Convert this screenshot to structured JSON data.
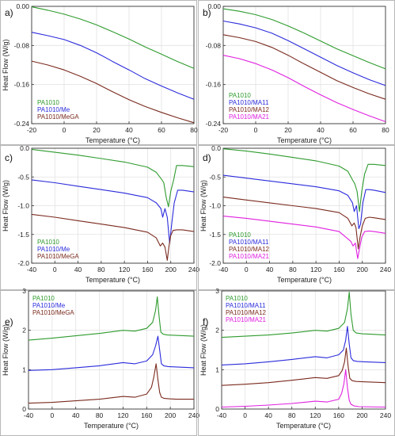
{
  "chart_data": [
    {
      "panel_label": "a)",
      "type": "line",
      "xlabel": "Temperature (°C)",
      "ylabel": "Heat Flow (W/g)",
      "xlim": [
        -20,
        80
      ],
      "ylim": [
        -0.24,
        0.0
      ],
      "x_ticks": [
        -20,
        0,
        20,
        40,
        60,
        80
      ],
      "y_ticks": [
        0.0,
        -0.08,
        -0.16,
        -0.24
      ],
      "y_tick_labels": [
        "0.00",
        "-0.08",
        "-0.16",
        "-0.24"
      ],
      "legend_position": "bottom-left",
      "series": [
        {
          "name": "PA1010",
          "color": "#2e9b2e",
          "x": [
            -20,
            -10,
            0,
            10,
            20,
            30,
            40,
            50,
            60,
            70,
            80
          ],
          "y": [
            -0.001,
            -0.008,
            -0.016,
            -0.026,
            -0.038,
            -0.052,
            -0.067,
            -0.083,
            -0.098,
            -0.113,
            -0.127
          ]
        },
        {
          "name": "PA1010/Me",
          "color": "#2b2bdc",
          "x": [
            -20,
            -10,
            0,
            10,
            20,
            30,
            40,
            50,
            60,
            70,
            80
          ],
          "y": [
            -0.053,
            -0.06,
            -0.068,
            -0.08,
            -0.095,
            -0.113,
            -0.13,
            -0.148,
            -0.163,
            -0.177,
            -0.19
          ]
        },
        {
          "name": "PA1010/MeGA",
          "color": "#7a2a1e",
          "x": [
            -20,
            -10,
            0,
            10,
            20,
            30,
            40,
            50,
            60,
            70,
            80
          ],
          "y": [
            -0.112,
            -0.12,
            -0.13,
            -0.143,
            -0.158,
            -0.175,
            -0.191,
            -0.205,
            -0.217,
            -0.228,
            -0.238
          ]
        }
      ]
    },
    {
      "panel_label": "b)",
      "type": "line",
      "xlabel": "Temperature (°C)",
      "ylabel": "",
      "xlim": [
        -20,
        80
      ],
      "ylim": [
        -0.24,
        0.0
      ],
      "x_ticks": [
        -20,
        0,
        20,
        40,
        60,
        80
      ],
      "y_ticks": [
        0.0,
        -0.08,
        -0.16,
        -0.24
      ],
      "y_tick_labels": [
        "0.00",
        "-0.08",
        "-0.16",
        "-0.24"
      ],
      "legend_position": "bottom-left",
      "series": [
        {
          "name": "PA1010",
          "color": "#2e9b2e",
          "x": [
            -20,
            -10,
            0,
            10,
            20,
            30,
            40,
            50,
            60,
            70,
            80
          ],
          "y": [
            -0.005,
            -0.01,
            -0.017,
            -0.027,
            -0.04,
            -0.055,
            -0.071,
            -0.087,
            -0.101,
            -0.115,
            -0.128
          ]
        },
        {
          "name": "PA1010/MA11",
          "color": "#2b2bdc",
          "x": [
            -20,
            -10,
            0,
            10,
            20,
            30,
            40,
            50,
            60,
            70,
            80
          ],
          "y": [
            -0.03,
            -0.036,
            -0.044,
            -0.055,
            -0.07,
            -0.087,
            -0.104,
            -0.121,
            -0.136,
            -0.15,
            -0.162
          ]
        },
        {
          "name": "PA1010/MA12",
          "color": "#7a2a1e",
          "x": [
            -20,
            -10,
            0,
            10,
            20,
            30,
            40,
            50,
            60,
            70,
            80
          ],
          "y": [
            -0.058,
            -0.064,
            -0.072,
            -0.084,
            -0.1,
            -0.118,
            -0.135,
            -0.152,
            -0.166,
            -0.179,
            -0.19
          ]
        },
        {
          "name": "PA1010/MA21",
          "color": "#e020e0",
          "x": [
            -20,
            -10,
            0,
            10,
            20,
            30,
            40,
            50,
            60,
            70,
            80
          ],
          "y": [
            -0.1,
            -0.107,
            -0.117,
            -0.13,
            -0.146,
            -0.164,
            -0.181,
            -0.197,
            -0.211,
            -0.224,
            -0.236
          ]
        }
      ]
    },
    {
      "panel_label": "c)",
      "type": "line",
      "xlabel": "Temperature (°C)",
      "ylabel": "Heat Flow (W/g)",
      "xlim": [
        -40,
        240
      ],
      "ylim": [
        -2.0,
        0.0
      ],
      "x_ticks": [
        -40,
        0,
        40,
        80,
        120,
        160,
        200,
        240
      ],
      "y_ticks": [
        0.0,
        -0.5,
        -1.0,
        -1.5,
        -2.0
      ],
      "y_tick_labels": [
        "0.0",
        "-0.5",
        "-1.0",
        "-1.5",
        "-2.0"
      ],
      "legend_position": "bottom-left",
      "series": [
        {
          "name": "PA1010",
          "color": "#2e9b2e",
          "x": [
            -40,
            0,
            40,
            80,
            120,
            160,
            175,
            185,
            188,
            192,
            196,
            200,
            205,
            210,
            220,
            240
          ],
          "y": [
            -0.02,
            -0.07,
            -0.12,
            -0.18,
            -0.24,
            -0.33,
            -0.42,
            -0.55,
            -0.6,
            -0.85,
            -1.02,
            -0.75,
            -0.55,
            -0.3,
            -0.3,
            -0.32
          ]
        },
        {
          "name": "PA1010/Me",
          "color": "#2b2bdc",
          "x": [
            -40,
            0,
            40,
            80,
            120,
            160,
            175,
            183,
            186,
            190,
            194,
            198,
            202,
            206,
            212,
            220,
            240
          ],
          "y": [
            -0.55,
            -0.6,
            -0.66,
            -0.72,
            -0.78,
            -0.86,
            -0.95,
            -1.05,
            -1.2,
            -1.05,
            -1.2,
            -1.65,
            -1.28,
            -0.95,
            -0.73,
            -0.73,
            -0.76
          ]
        },
        {
          "name": "PA1010/MeGA",
          "color": "#7a2a1e",
          "x": [
            -40,
            0,
            40,
            80,
            120,
            160,
            175,
            182,
            186,
            190,
            194,
            197,
            200,
            204,
            210,
            220,
            240
          ],
          "y": [
            -1.15,
            -1.2,
            -1.26,
            -1.32,
            -1.38,
            -1.46,
            -1.56,
            -1.7,
            -1.65,
            -1.72,
            -1.95,
            -1.7,
            -1.52,
            -1.43,
            -1.42,
            -1.42,
            -1.45
          ]
        }
      ]
    },
    {
      "panel_label": "d)",
      "type": "line",
      "xlabel": "Temperature (°C)",
      "ylabel": "Heat Flow (W/g)",
      "xlim": [
        -40,
        240
      ],
      "ylim": [
        -2.0,
        0.0
      ],
      "x_ticks": [
        -40,
        0,
        40,
        80,
        120,
        160,
        200,
        240
      ],
      "y_ticks": [
        0.0,
        -0.5,
        -1.0,
        -1.5,
        -2.0
      ],
      "y_tick_labels": [
        "0.0",
        "-0.5",
        "-1.0",
        "-1.5",
        "-2.0"
      ],
      "legend_position": "bottom-left",
      "series": [
        {
          "name": "PA1010",
          "color": "#2e9b2e",
          "x": [
            -40,
            0,
            40,
            80,
            120,
            160,
            175,
            183,
            187,
            191,
            195,
            199,
            204,
            210,
            220,
            240
          ],
          "y": [
            -0.01,
            -0.05,
            -0.1,
            -0.16,
            -0.22,
            -0.31,
            -0.4,
            -0.55,
            -0.62,
            -0.75,
            -1.1,
            -0.75,
            -0.45,
            -0.28,
            -0.28,
            -0.3
          ]
        },
        {
          "name": "PA1010/MA11",
          "color": "#2b2bdc",
          "x": [
            -40,
            0,
            40,
            80,
            120,
            160,
            175,
            183,
            186,
            190,
            194,
            197,
            201,
            206,
            212,
            220,
            240
          ],
          "y": [
            -0.47,
            -0.52,
            -0.57,
            -0.62,
            -0.67,
            -0.74,
            -0.82,
            -0.95,
            -1.1,
            -1.0,
            -1.4,
            -1.32,
            -0.95,
            -0.72,
            -0.72,
            -0.73,
            -0.77
          ]
        },
        {
          "name": "PA1010/MA12",
          "color": "#7a2a1e",
          "x": [
            -40,
            0,
            40,
            80,
            120,
            160,
            175,
            182,
            186,
            189,
            193,
            196,
            200,
            205,
            212,
            220,
            240
          ],
          "y": [
            -0.85,
            -0.9,
            -0.95,
            -1.0,
            -1.05,
            -1.12,
            -1.22,
            -1.35,
            -1.3,
            -1.38,
            -1.75,
            -1.55,
            -1.35,
            -1.22,
            -1.2,
            -1.21,
            -1.24
          ]
        },
        {
          "name": "PA1010/MA21",
          "color": "#e020e0",
          "x": [
            -40,
            0,
            40,
            80,
            120,
            160,
            172,
            180,
            184,
            188,
            192,
            195,
            199,
            204,
            212,
            220,
            240
          ],
          "y": [
            -1.18,
            -1.22,
            -1.27,
            -1.32,
            -1.37,
            -1.45,
            -1.55,
            -1.62,
            -1.7,
            -1.65,
            -1.92,
            -1.75,
            -1.55,
            -1.45,
            -1.44,
            -1.45,
            -1.48
          ]
        }
      ]
    },
    {
      "panel_label": "e)",
      "type": "line",
      "xlabel": "Temperature (°C)",
      "ylabel": "Heat Flow (W/g)",
      "xlim": [
        -40,
        240
      ],
      "ylim": [
        0,
        3
      ],
      "x_ticks": [
        -40,
        0,
        40,
        80,
        120,
        160,
        200,
        240
      ],
      "y_ticks": [
        0,
        1,
        2,
        3
      ],
      "y_tick_labels": [
        "0",
        "1",
        "2",
        "3"
      ],
      "legend_position": "top-left",
      "series": [
        {
          "name": "PA1010",
          "color": "#2e9b2e",
          "x": [
            -40,
            0,
            40,
            80,
            120,
            140,
            160,
            170,
            175,
            178,
            181,
            184,
            188,
            195,
            210,
            240
          ],
          "y": [
            1.75,
            1.8,
            1.86,
            1.92,
            2.0,
            1.98,
            2.05,
            2.2,
            2.5,
            2.85,
            2.35,
            1.95,
            1.9,
            1.88,
            1.87,
            1.85
          ]
        },
        {
          "name": "PA1010/Me",
          "color": "#2b2bdc",
          "x": [
            -40,
            0,
            40,
            80,
            120,
            140,
            160,
            170,
            175,
            179,
            182,
            185,
            189,
            196,
            210,
            240
          ],
          "y": [
            0.98,
            1.0,
            1.05,
            1.1,
            1.18,
            1.15,
            1.22,
            1.38,
            1.6,
            1.85,
            1.5,
            1.15,
            1.1,
            1.08,
            1.07,
            1.05
          ]
        },
        {
          "name": "PA1010/MeGA",
          "color": "#7a2a1e",
          "x": [
            -40,
            0,
            40,
            80,
            120,
            140,
            160,
            168,
            172,
            176,
            179,
            182,
            185,
            190,
            198,
            210,
            240
          ],
          "y": [
            0.15,
            0.17,
            0.21,
            0.25,
            0.32,
            0.3,
            0.38,
            0.55,
            0.8,
            1.15,
            0.75,
            0.42,
            0.3,
            0.27,
            0.26,
            0.25,
            0.25
          ]
        }
      ]
    },
    {
      "panel_label": "f)",
      "type": "line",
      "xlabel": "Temperature (°C)",
      "ylabel": "Heat Flow (W/g)",
      "xlim": [
        -40,
        240
      ],
      "ylim": [
        0,
        3
      ],
      "x_ticks": [
        -40,
        0,
        40,
        80,
        120,
        160,
        200,
        240
      ],
      "y_ticks": [
        0,
        1,
        2,
        3
      ],
      "y_tick_labels": [
        "0",
        "1",
        "2",
        "3"
      ],
      "legend_position": "top-left",
      "series": [
        {
          "name": "PA1010",
          "color": "#2e9b2e",
          "x": [
            -40,
            0,
            40,
            80,
            120,
            140,
            160,
            170,
            175,
            178,
            181,
            185,
            190,
            200,
            215,
            240
          ],
          "y": [
            1.82,
            1.85,
            1.88,
            1.93,
            2.0,
            1.98,
            2.05,
            2.2,
            2.55,
            2.97,
            2.4,
            2.0,
            1.93,
            1.91,
            1.9,
            1.88
          ]
        },
        {
          "name": "PA1010/MA11",
          "color": "#2b2bdc",
          "x": [
            -40,
            0,
            40,
            80,
            120,
            140,
            160,
            168,
            172,
            175,
            178,
            181,
            185,
            192,
            205,
            240
          ],
          "y": [
            1.12,
            1.15,
            1.2,
            1.26,
            1.33,
            1.3,
            1.38,
            1.5,
            1.75,
            2.1,
            1.65,
            1.3,
            1.23,
            1.21,
            1.2,
            1.18
          ]
        },
        {
          "name": "PA1010/MA12",
          "color": "#7a2a1e",
          "x": [
            -40,
            0,
            40,
            80,
            120,
            140,
            160,
            166,
            170,
            173,
            176,
            179,
            183,
            190,
            205,
            240
          ],
          "y": [
            0.6,
            0.63,
            0.67,
            0.73,
            0.8,
            0.78,
            0.85,
            0.98,
            1.2,
            1.55,
            1.1,
            0.78,
            0.72,
            0.7,
            0.69,
            0.67
          ]
        },
        {
          "name": "PA1010/MA21",
          "color": "#e020e0",
          "x": [
            -40,
            0,
            40,
            80,
            120,
            140,
            160,
            165,
            169,
            172,
            175,
            178,
            181,
            186,
            195,
            240
          ],
          "y": [
            0.05,
            0.07,
            0.1,
            0.14,
            0.2,
            0.18,
            0.25,
            0.4,
            0.65,
            1.0,
            0.55,
            0.22,
            0.12,
            0.08,
            0.06,
            0.05
          ]
        }
      ]
    }
  ]
}
